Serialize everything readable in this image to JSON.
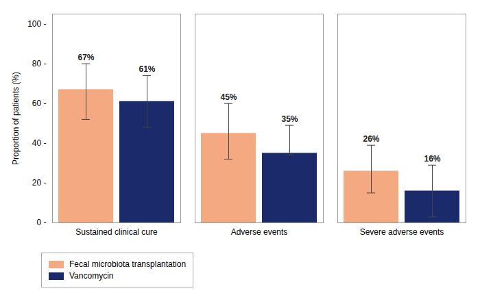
{
  "chart_data": {
    "type": "bar",
    "categories": [
      "Sustained clinical cure",
      "Adverse events",
      "Severe adverse events"
    ],
    "series": [
      {
        "name": "Fecal microbiota transplantation",
        "color": "#F4A980",
        "values": [
          67,
          45,
          26
        ],
        "value_labels": [
          "67%",
          "45%",
          "26%"
        ],
        "errors_up": [
          13,
          15,
          13
        ],
        "errors_down": [
          15,
          13,
          11
        ]
      },
      {
        "name": "Vancomycin",
        "color": "#1B2A6B",
        "values": [
          61,
          35,
          16
        ],
        "value_labels": [
          "61%",
          "35%",
          "16%"
        ],
        "errors_up": [
          13,
          14,
          13
        ],
        "errors_down": [
          13,
          1,
          13
        ]
      }
    ],
    "ylabel": "Proportion of patients (%)",
    "ylim": [
      0,
      105
    ],
    "yticks": [
      {
        "value": 0,
        "label": "0 -"
      },
      {
        "value": 20,
        "label": "20 -"
      },
      {
        "value": 40,
        "label": "40 -"
      },
      {
        "value": 60,
        "label": "60 -"
      },
      {
        "value": 80,
        "label": "80 -"
      },
      {
        "value": 100,
        "label": "100 -"
      }
    ],
    "grid": false,
    "legend": "lower left",
    "data_labels": true
  }
}
